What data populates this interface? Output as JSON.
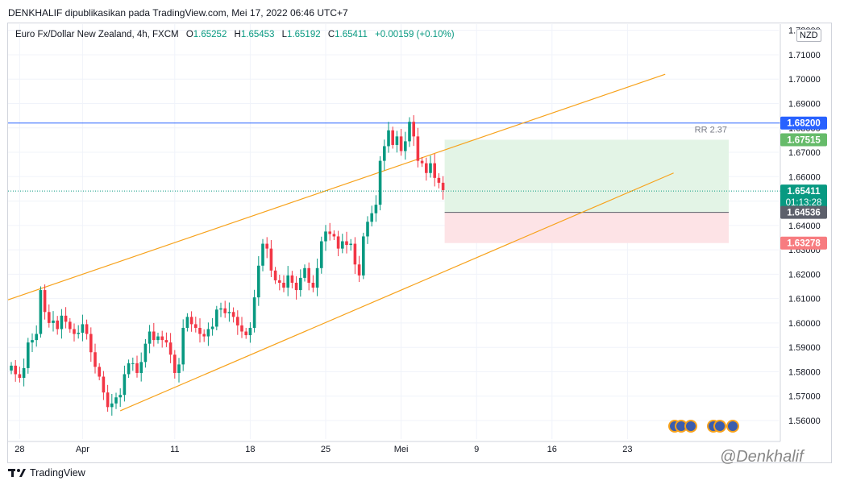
{
  "publisher": "DENKHALIF dipublikasikan pada TradingView.com, Mei 17, 2022 06:46 UTC+7",
  "legend": {
    "symbol": "Euro Fx/Dollar New Zealand, 4h, FXCM",
    "open_label": "O",
    "open": "1.65252",
    "high_label": "H",
    "high": "1.65453",
    "low_label": "L",
    "low": "1.65192",
    "close_label": "C",
    "close": "1.65411",
    "change": "+0.00159 (+0.10%)"
  },
  "currency_badge": "NZD",
  "footer": {
    "brand": "TradingView",
    "watermark": "@Denkhalif"
  },
  "colors": {
    "up": "#089981",
    "down": "#f23645",
    "channel": "#f7a21b",
    "resistance": "#2962ff",
    "profit_zone": "#e3f4e6",
    "loss_zone": "#fde3e6"
  },
  "chart_data": {
    "type": "line",
    "xlabel": "",
    "ylabel": "",
    "ylim": [
      1.555,
      1.7175
    ],
    "y_ticks": [
      "1.56000",
      "1.57000",
      "1.58000",
      "1.59000",
      "1.60000",
      "1.61000",
      "1.62000",
      "1.63000",
      "1.64000",
      "1.65000",
      "1.66000",
      "1.67000",
      "1.68000",
      "1.69000",
      "1.70000",
      "1.71000",
      "1.72000"
    ],
    "x_ticks": [
      {
        "label": "28",
        "idx": 2
      },
      {
        "label": "Apr",
        "idx": 17
      },
      {
        "label": "11",
        "idx": 39
      },
      {
        "label": "18",
        "idx": 57
      },
      {
        "label": "25",
        "idx": 75
      },
      {
        "label": "Mei",
        "idx": 93
      },
      {
        "label": "9",
        "idx": 111
      },
      {
        "label": "16",
        "idx": 129
      },
      {
        "label": "23",
        "idx": 147
      }
    ],
    "price_close": [
      1.5825,
      1.579,
      1.5775,
      1.5815,
      1.592,
      1.593,
      1.5955,
      1.6135,
      1.6045,
      1.6,
      1.601,
      1.5975,
      1.603,
      1.6005,
      1.5975,
      1.5955,
      1.596,
      1.5995,
      1.5955,
      1.588,
      1.582,
      1.578,
      1.5715,
      1.5655,
      1.567,
      1.5695,
      1.5705,
      1.579,
      1.5835,
      1.5835,
      1.5795,
      1.584,
      1.5915,
      1.5965,
      1.593,
      1.5945,
      1.593,
      1.592,
      1.587,
      1.5795,
      1.583,
      1.598,
      1.6025,
      1.5995,
      1.598,
      1.5955,
      1.5945,
      1.5975,
      1.5985,
      1.6055,
      1.606,
      1.604,
      1.6045,
      1.6025,
      1.599,
      1.5965,
      1.595,
      1.598,
      1.6105,
      1.6235,
      1.6325,
      1.6305,
      1.6215,
      1.6175,
      1.6165,
      1.6145,
      1.6195,
      1.6165,
      1.6135,
      1.6185,
      1.6225,
      1.6165,
      1.6145,
      1.6225,
      1.6335,
      1.6375,
      1.6365,
      1.6355,
      1.6305,
      1.6335,
      1.632,
      1.6325,
      1.624,
      1.6195,
      1.6355,
      1.6415,
      1.645,
      1.6485,
      1.6665,
      1.6725,
      1.679,
      1.673,
      1.6765,
      1.6705,
      1.6745,
      1.6825,
      1.6765,
      1.6665,
      1.6655,
      1.6615,
      1.6655,
      1.6595,
      1.6575,
      1.6545
    ],
    "annotations": {
      "resistance_price": 1.682,
      "target_price": 1.67515,
      "entry_price": 1.64536,
      "stop_price": 1.63278,
      "last_price": 1.65411,
      "countdown": "01:13:28",
      "rr_label": "RR 2.37",
      "channel_upper": [
        {
          "idx": 0,
          "price": 1.6095
        },
        {
          "idx": 156,
          "price": 1.702
        }
      ],
      "channel_lower": [
        {
          "idx": 26,
          "price": 1.564
        },
        {
          "idx": 158,
          "price": 1.6615
        }
      ]
    },
    "price_labels": {
      "resistance": "1.68200",
      "target": "1.67515",
      "last": "1.65411",
      "entry": "1.64536",
      "stop": "1.63278"
    }
  }
}
